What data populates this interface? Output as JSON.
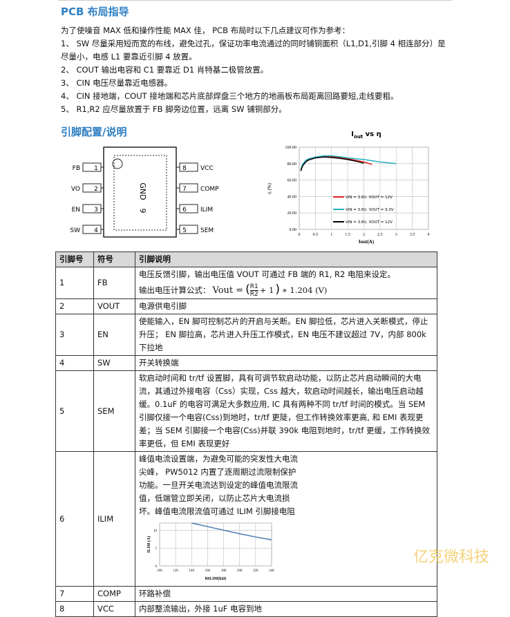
{
  "section1": {
    "title": "PCB 布局指导",
    "intro": "为了使噪音 MAX 低和操作性能 MAX 佳， PCB 布局时以下几点建议可作为参考：",
    "items": [
      "1、 SW 尽量采用短而宽的布线，避免过孔，保证功率电流通过的同时铺铜面积（L1,D1,引脚 4 相连部分）是尽量小，电感 L1 要靠近引脚 4 放置。",
      "2、 COUT 输出电容和 C1 要靠近 D1 肖特基二极管放置。",
      "3、 CIN 电压尽量靠近电感器。",
      "4、 CIN 接地端，COUT 接地端和芯片底部焊盘三个地方的地画板布局距离回路要短,走线要粗。",
      "5、 R1,R2 应尽量放置于 FB 脚旁边位置，远离 SW 铺铜部分。"
    ]
  },
  "section2": {
    "title": "引脚配置/说明"
  },
  "package": {
    "left_pins": [
      {
        "name": "FB",
        "num": "1"
      },
      {
        "name": "VO",
        "num": "2"
      },
      {
        "name": "EN",
        "num": "3"
      },
      {
        "name": "SW",
        "num": "4"
      }
    ],
    "right_pins": [
      {
        "num": "8",
        "name": "VCC"
      },
      {
        "num": "7",
        "name": "COMP"
      },
      {
        "num": "6",
        "name": "ILIM"
      },
      {
        "num": "5",
        "name": "SEM"
      }
    ],
    "pad_name": "GND",
    "pad_num": "9"
  },
  "efficiency_chart": {
    "type": "line",
    "title_parts": [
      "I",
      "out",
      " vs η"
    ],
    "x_label": "Iout(A)",
    "y_label": "η (%)",
    "x": [
      0.05,
      0.1,
      0.2,
      0.3,
      0.5,
      0.75,
      1,
      1.25,
      1.5,
      1.75,
      2,
      2.25,
      2.5,
      2.75,
      3
    ],
    "series": [
      {
        "name": "VIN = 3.6V, VOUT = 12V",
        "color": "#e02020",
        "values": [
          72,
          78,
          83,
          85,
          87.5,
          88.5,
          88.5,
          87.5,
          86,
          84,
          82,
          79,
          null,
          null,
          null
        ]
      },
      {
        "name": "VIN = 3.6V, VOUT = 9.3V",
        "color": "#20b0c0",
        "values": [
          73,
          79,
          84,
          86,
          88,
          89.5,
          89.5,
          88.5,
          87,
          86,
          85,
          83.5,
          82,
          81,
          80
        ]
      },
      {
        "name": "VIN = 3.6V, VOUT = 12V",
        "color": "#000000",
        "values": [
          71,
          77,
          82,
          84.5,
          87,
          88,
          87.5,
          86.5,
          85,
          83,
          80.5,
          null,
          null,
          null,
          null
        ]
      }
    ],
    "xlim": [
      0,
      4
    ],
    "xticks": [
      0,
      0.5,
      1,
      1.5,
      2,
      2.5,
      3,
      3.5,
      4
    ],
    "ylim": [
      0,
      100
    ],
    "yticks": [
      {
        "value": 0,
        "label": "0.00"
      },
      {
        "value": 20,
        "label": "20.00"
      },
      {
        "value": 40,
        "label": "40.00"
      },
      {
        "value": 60,
        "label": "60.00"
      },
      {
        "value": 80,
        "label": "80.00"
      },
      {
        "value": 100,
        "label": "100.00"
      }
    ],
    "grid": true
  },
  "table": {
    "headers": [
      "引脚号",
      "符号",
      "引脚说明"
    ],
    "rows": [
      {
        "pin": "1",
        "symbol": "FB",
        "desc": "电压反馈引脚，输出电压值 VOUT 可通过 FB 端的 R1, R2 电阻来设定。"
      },
      {
        "pin": "2",
        "symbol": "VOUT",
        "desc": "电源供电引脚"
      },
      {
        "pin": "3",
        "symbol": "EN",
        "desc": "使能输入，EN 脚可控制芯片的开启与关断。EN 脚拉低，芯片进入关断模式，停止升压； EN 脚拉高，芯片进入升压工作模式，EN 电压不建议超过 7V，内部 800k 下拉地"
      },
      {
        "pin": "4",
        "symbol": "SW",
        "desc": "开关转换端"
      },
      {
        "pin": "5",
        "symbol": "SEM",
        "desc": "软启动时间和 tr/tf 设置脚，具有可调节软启动功能，以防止芯片启动瞬间的大电流，其通过外接电容（Css）实现，Css 越大，软启动时间越长，输出电压启动越缓。0.1uF 的电容可满足大多数应用, IC 具有两种不同 tr/tf 时间的模式。当 SEM 引脚仅接一个电容(Css)到地时，tr/tf 更陡，但工作转换效率更高, 和 EMI 表现更差；当 SEM 引脚接一个电容(Css)并联 390k 电阻到地时，tr/tf 更缓，工作转换效率更低，但 EMI 表现更好"
      },
      {
        "pin": "6",
        "symbol": "ILIM",
        "desc": "峰值电流设置端，为避免可能的突发性大电流尖峰， PW5012 内置了逐周期过流限制保护功能。一旦开关电流达到设定的峰值电流限流值，低端管立即关闭，以防止芯片大电流损坏。峰值电流限流值可通过 ILIM 引脚接电阻(RILIM)至地设置"
      },
      {
        "pin": "7",
        "symbol": "COMP",
        "desc": "环路补偿"
      },
      {
        "pin": "8",
        "symbol": "VCC",
        "desc": "内部整流输出，外接 1uF 电容到地"
      }
    ],
    "formula": {
      "label": "输出电压计算公式：",
      "lhs": "Vout =",
      "open": "(",
      "num": "R1",
      "den": "R2",
      "plus": "+ 1",
      "close": ")",
      "tail": "∗ 1.204 (V)"
    }
  },
  "ilim_chart": {
    "type": "line",
    "x_label": "RILIM(kΩ)",
    "y_label": "ILIM (A)",
    "x": [
      140,
      160,
      180,
      200,
      220,
      240
    ],
    "series": [
      {
        "color": "#4a7ab0",
        "values": [
          12,
          11,
          10,
          9,
          8.1,
          7.3
        ]
      }
    ],
    "xlim": [
      100,
      240
    ],
    "xticks": [
      100,
      120,
      140,
      160,
      180,
      200,
      220,
      240
    ],
    "ylim": [
      0,
      12
    ],
    "yticks": [
      0,
      5,
      10
    ],
    "grid": true
  },
  "watermark": "亿克微科技"
}
